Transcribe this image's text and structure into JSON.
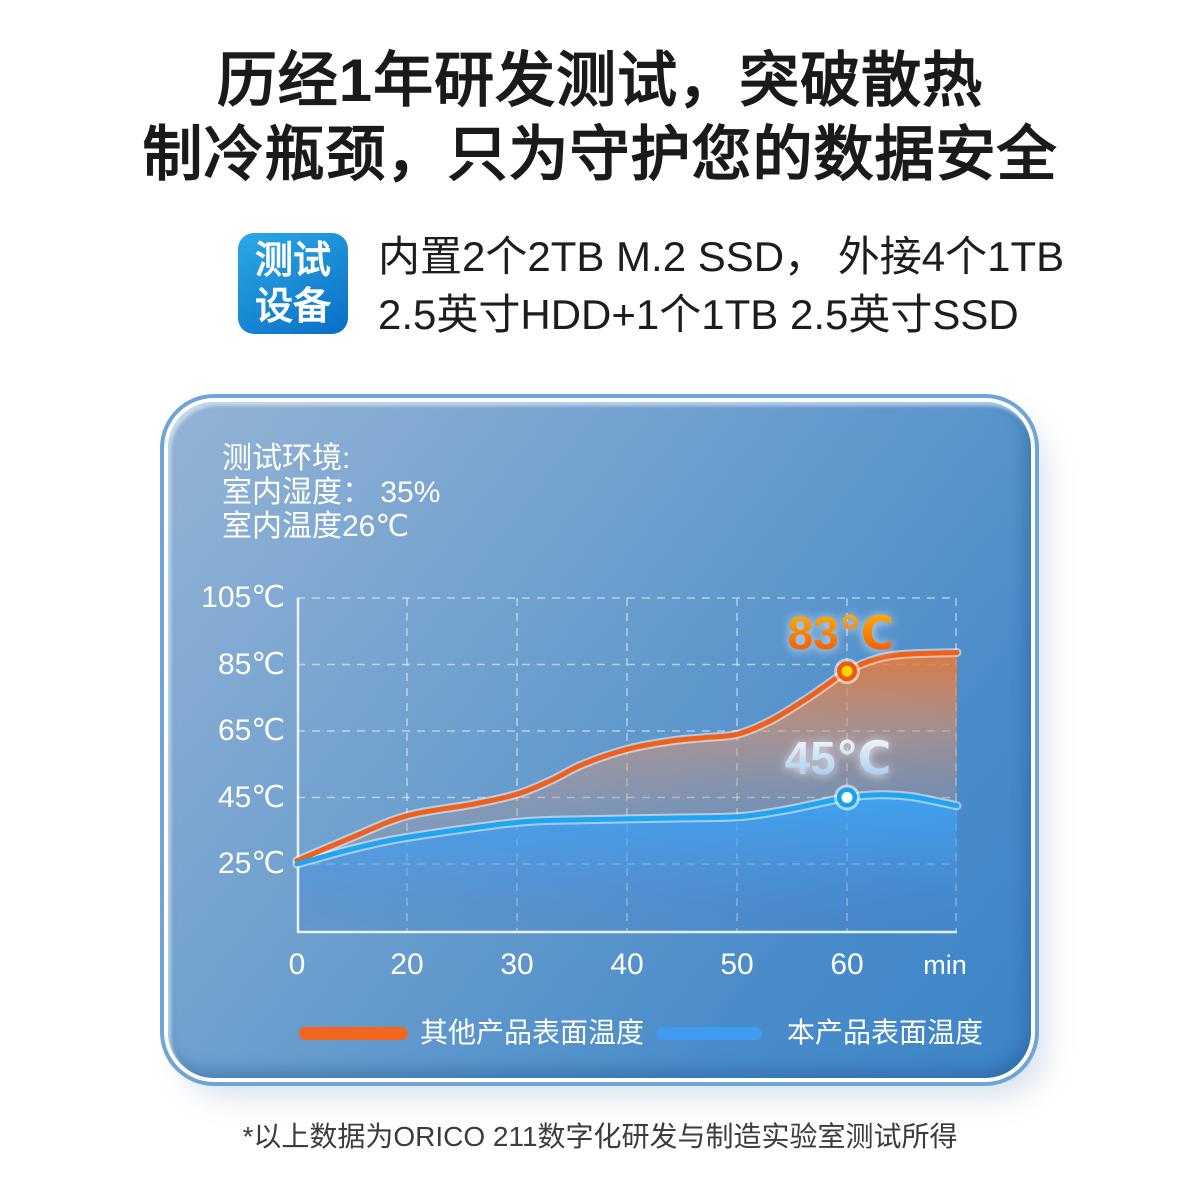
{
  "page": {
    "headline_line1": "历经1年研发测试，突破散热",
    "headline_line2": "制冷瓶颈，只为守护您的数据安全",
    "footnote": "*以上数据为ORICO 211数字化研发与制造实验室测试所得"
  },
  "test_setup": {
    "badge_line1": "测试",
    "badge_line2": "设备",
    "desc_line1": "内置2个2TB M.2 SSD， 外接4个1TB",
    "desc_line2": "2.5英寸HDD+1个1TB 2.5英寸SSD"
  },
  "environment": {
    "line1": "测试环境:",
    "line2": "室内湿度： 35%",
    "line3": "室内温度26℃"
  },
  "colors": {
    "badge_gradient_start": "#2BA9E5",
    "badge_gradient_end": "#0A6EC6",
    "card_gradient_start": "#94B3D5",
    "card_gradient_end": "#3C85C7",
    "grid_line": "rgba(255,255,255,0.52)",
    "peak_label_orange_top": "#FFBB05",
    "peak_label_orange_bottom": "#F14A0C",
    "peak_label_blue_top": "#FFFFFF",
    "peak_label_blue_bottom": "#96C2F0"
  },
  "chart_data": {
    "type": "area",
    "title": "",
    "x_unit_label": "min",
    "x_tick_labels": [
      "0",
      "20",
      "30",
      "40",
      "50",
      "60"
    ],
    "x_tick_minutes": [
      0,
      20,
      30,
      40,
      50,
      60
    ],
    "y_tick_labels": [
      "105℃",
      "85℃",
      "65℃",
      "45℃",
      "25℃"
    ],
    "y_tick_values": [
      105,
      85,
      65,
      45,
      25
    ],
    "ylim": [
      4.5,
      105
    ],
    "grid": "dashed-white",
    "legend_position": "bottom",
    "series": [
      {
        "name": "其他产品表面温度",
        "color": "#F0601C",
        "legend_color": "#F2661F",
        "marker_ring": "#F3570D",
        "marker_core": "#FFD40A",
        "points": [
          [
            0,
            26
          ],
          [
            10,
            33
          ],
          [
            20,
            39.5
          ],
          [
            26,
            43
          ],
          [
            30,
            46
          ],
          [
            33,
            50
          ],
          [
            36,
            55
          ],
          [
            40,
            59.5
          ],
          [
            44,
            62
          ],
          [
            47,
            63
          ],
          [
            50,
            64
          ],
          [
            53,
            68
          ],
          [
            56,
            74
          ],
          [
            58,
            78.5
          ],
          [
            60,
            83
          ],
          [
            62.5,
            86.5
          ],
          [
            65,
            88
          ],
          [
            70,
            88.6
          ]
        ],
        "highlight": {
          "minute": 60,
          "value": 83,
          "label": "83℃"
        }
      },
      {
        "name": "本产品表面温度",
        "color": "#1FA5F2",
        "legend_color": "#3F9BF2",
        "marker_ring": "#12A2EE",
        "marker_core": "#FFFFFF",
        "points": [
          [
            0,
            25
          ],
          [
            10,
            29.5
          ],
          [
            20,
            33
          ],
          [
            30,
            37.5
          ],
          [
            36,
            38.3
          ],
          [
            44,
            38.8
          ],
          [
            50,
            39.2
          ],
          [
            54,
            41
          ],
          [
            57,
            43
          ],
          [
            60,
            45
          ],
          [
            63,
            45.8
          ],
          [
            66,
            45.2
          ],
          [
            70,
            42.5
          ]
        ],
        "highlight": {
          "minute": 60,
          "value": 45,
          "label": "45℃"
        }
      }
    ]
  }
}
